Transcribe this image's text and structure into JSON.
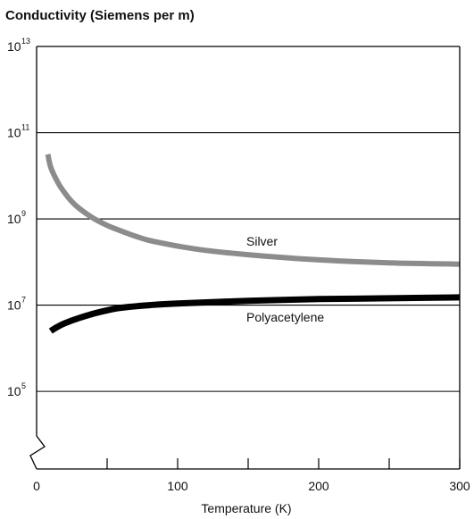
{
  "chart_data": {
    "type": "line",
    "title": "Conductivity (Siemens per m)",
    "xlabel": "Temperature (K)",
    "ylabel": "",
    "xlim": [
      0,
      300
    ],
    "ylim_exponent": [
      3.2,
      13
    ],
    "y_scale": "log10",
    "x_ticks": [
      0,
      100,
      200,
      300
    ],
    "x_minor_ticks": [
      50,
      150,
      250
    ],
    "y_ticks": [
      {
        "base": "10",
        "exp": "13",
        "value": 13
      },
      {
        "base": "10",
        "exp": "11",
        "value": 11
      },
      {
        "base": "10",
        "exp": "9",
        "value": 9
      },
      {
        "base": "10",
        "exp": "7",
        "value": 7
      },
      {
        "base": "10",
        "exp": "5",
        "value": 5
      }
    ],
    "gridlines_y": [
      11,
      9,
      7,
      5
    ],
    "axis_break": true,
    "series": [
      {
        "name": "Silver",
        "color": "#8c8c8c",
        "x": [
          8,
          10,
          15,
          20,
          25,
          30,
          40,
          50,
          60,
          70,
          80,
          100,
          120,
          150,
          200,
          250,
          300
        ],
        "y_exp": [
          10.5,
          10.2,
          9.85,
          9.6,
          9.4,
          9.25,
          9.02,
          8.85,
          8.72,
          8.6,
          8.5,
          8.37,
          8.27,
          8.17,
          8.05,
          7.98,
          7.95
        ]
      },
      {
        "name": "Polyacetylene",
        "color": "#000000",
        "x": [
          10,
          15,
          20,
          30,
          40,
          50,
          60,
          80,
          100,
          150,
          200,
          250,
          300
        ],
        "y_exp": [
          6.4,
          6.5,
          6.58,
          6.7,
          6.8,
          6.88,
          6.94,
          7.0,
          7.04,
          7.1,
          7.14,
          7.16,
          7.18
        ]
      }
    ]
  }
}
